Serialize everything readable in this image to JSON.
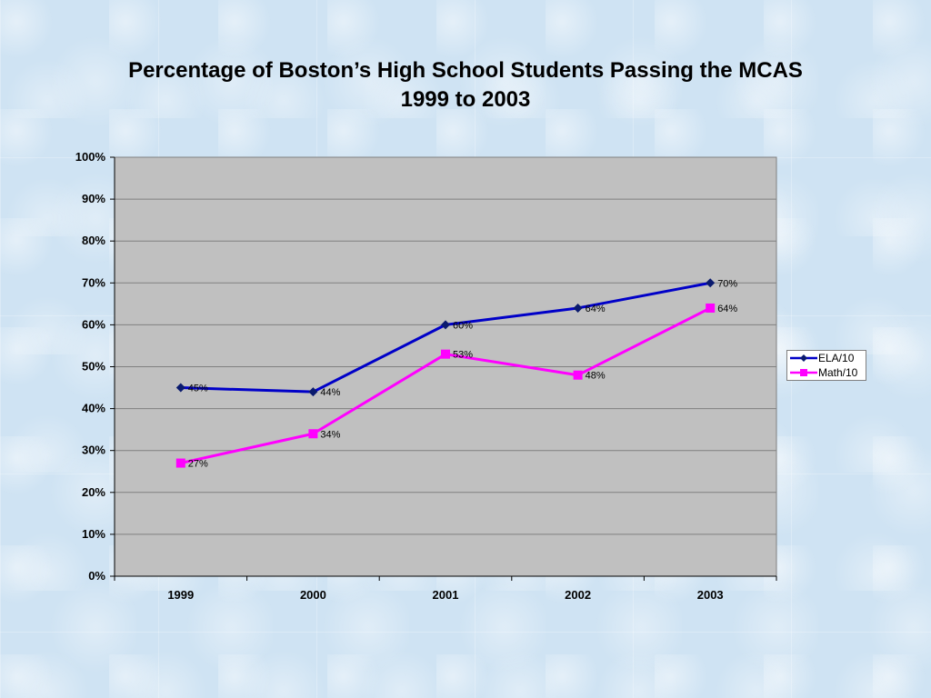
{
  "chart_data": {
    "type": "line",
    "title": "Percentage of Boston’s High School Students Passing the MCAS",
    "subtitle": "1999 to 2003",
    "x": [
      "1999",
      "2000",
      "2001",
      "2002",
      "2003"
    ],
    "ylim": [
      0,
      100
    ],
    "yticks": [
      "0%",
      "10%",
      "20%",
      "30%",
      "40%",
      "50%",
      "60%",
      "70%",
      "80%",
      "90%",
      "100%"
    ],
    "grid": true,
    "legend_position": "right",
    "series": [
      {
        "name": "ELA/10",
        "values": [
          45,
          44,
          60,
          64,
          70
        ],
        "labels": [
          "45%",
          "44%",
          "60%",
          "64%",
          "70%"
        ],
        "color": "#0000c8",
        "marker": "diamond"
      },
      {
        "name": "Math/10",
        "values": [
          27,
          34,
          53,
          48,
          64
        ],
        "labels": [
          "27%",
          "34%",
          "53%",
          "48%",
          "64%"
        ],
        "color": "#ff00ff",
        "marker": "square"
      }
    ],
    "plot_background": "#c0c0c0"
  }
}
